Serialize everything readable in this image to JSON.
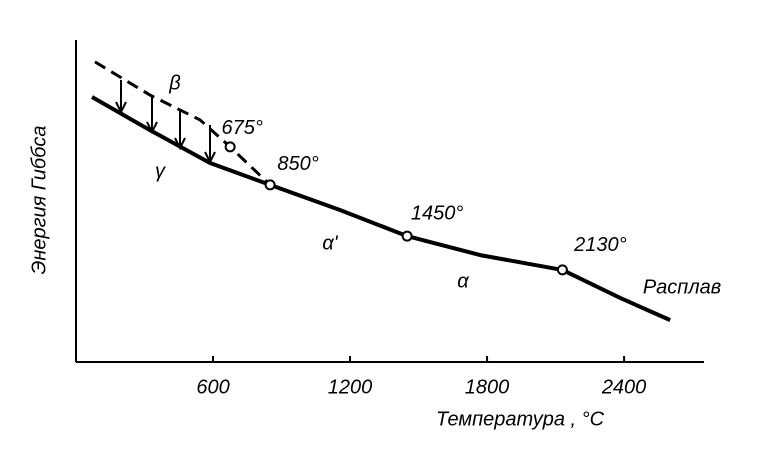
{
  "chart_data": {
    "type": "line",
    "xlabel": "Температура , °С",
    "ylabel": "Энергия Гиббса",
    "xlim": [
      0,
      2750
    ],
    "ylim": [
      0,
      100
    ],
    "xticks": [
      600,
      1200,
      1800,
      2400
    ],
    "series": [
      {
        "color": "#000000",
        "dashed": false,
        "x": [
          70,
          324,
          587,
          850,
          1156,
          1450,
          1770,
          2130,
          2383,
          2602
        ],
        "values": [
          82.3,
          72,
          61.8,
          55,
          47.2,
          39.1,
          33.2,
          28.6,
          19.9,
          13
        ]
      },
      {
        "color": "#000000",
        "dashed": true,
        "x": [
          83,
          324,
          543,
          675,
          850
        ],
        "values": [
          93.2,
          82.9,
          75.2,
          66.8,
          55
        ]
      }
    ],
    "points": {
      "x": [
        675,
        850,
        1450,
        2130
      ],
      "values": [
        66.8,
        55,
        39.1,
        28.6
      ],
      "value_labels": [
        "675°",
        "850°",
        "1450°",
        "2130°"
      ]
    },
    "phase_labels": [
      "β",
      "γ",
      "α'",
      "α",
      "Расплав"
    ]
  }
}
